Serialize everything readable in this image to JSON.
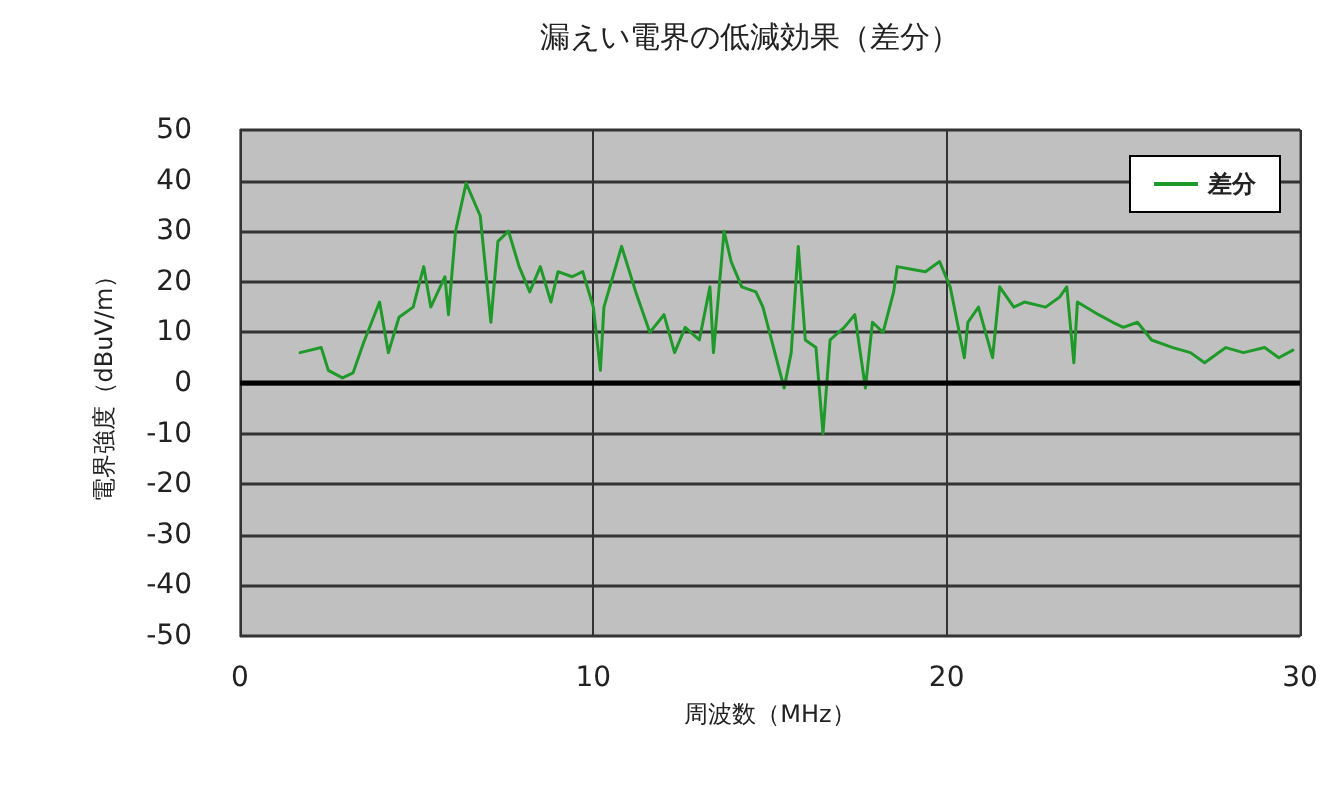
{
  "chart_data": {
    "type": "line",
    "title": "漏えい電界の低減効果（差分）",
    "xlabel": "周波数（MHz）",
    "ylabel": "電界強度（dBuV/m）",
    "series": [
      {
        "name": "差分",
        "color": "#1f9a2a",
        "x": [
          1.7,
          2.3,
          2.5,
          2.9,
          3.2,
          3.5,
          3.95,
          4.2,
          4.5,
          4.9,
          5.2,
          5.4,
          5.8,
          5.9,
          6.1,
          6.4,
          6.8,
          7.1,
          7.3,
          7.6,
          7.9,
          8.2,
          8.5,
          8.8,
          9.0,
          9.4,
          9.7,
          10.0,
          10.2,
          10.3,
          10.8,
          11.2,
          11.6,
          12.0,
          12.3,
          12.6,
          13.0,
          13.3,
          13.4,
          13.7,
          13.9,
          14.2,
          14.6,
          14.8,
          15.1,
          15.4,
          15.6,
          15.8,
          16.0,
          16.3,
          16.5,
          16.7,
          17.1,
          17.4,
          17.7,
          17.9,
          18.2,
          18.5,
          18.6,
          19.0,
          19.4,
          19.8,
          20.1,
          20.3,
          20.5,
          20.6,
          20.9,
          21.3,
          21.5,
          21.9,
          22.2,
          22.8,
          23.2,
          23.4,
          23.6,
          23.7,
          24.3,
          24.7,
          25.0,
          25.4,
          25.8,
          26.4,
          26.9,
          27.3,
          27.9,
          28.4,
          29.0,
          29.4,
          29.8
        ],
        "values": [
          6,
          7,
          2.5,
          1,
          2,
          8,
          16,
          6,
          13,
          15,
          23,
          15,
          21,
          13.5,
          30,
          39.5,
          33,
          12,
          28,
          30,
          23,
          18,
          23,
          16,
          22,
          21,
          22,
          15,
          2.5,
          15,
          27,
          18,
          10,
          13.5,
          6,
          11,
          8.5,
          19,
          6,
          30,
          24,
          19,
          18,
          15,
          7,
          -1,
          6,
          27,
          8.5,
          7,
          -10,
          8.5,
          11,
          13.5,
          -1,
          12,
          10,
          18,
          23,
          22.5,
          22,
          24,
          19,
          12,
          5,
          12,
          15,
          5,
          19,
          15,
          16,
          15,
          17,
          19,
          4,
          16,
          13.5,
          12,
          11,
          12,
          8.5,
          7,
          6,
          4,
          7,
          6,
          7,
          5,
          6.5
        ]
      }
    ],
    "xlim": [
      0,
      30
    ],
    "xticks": [
      0,
      10,
      20,
      30
    ],
    "ylim": [
      -50,
      50
    ],
    "yticks": [
      -50,
      -40,
      -30,
      -20,
      -10,
      0,
      10,
      20,
      30,
      40,
      50
    ],
    "grid": true,
    "legend": "top right",
    "marker": "none",
    "line_style": "solid",
    "ref_lines": [
      {
        "axis": "y",
        "value": 0,
        "color": "#000000"
      }
    ]
  }
}
